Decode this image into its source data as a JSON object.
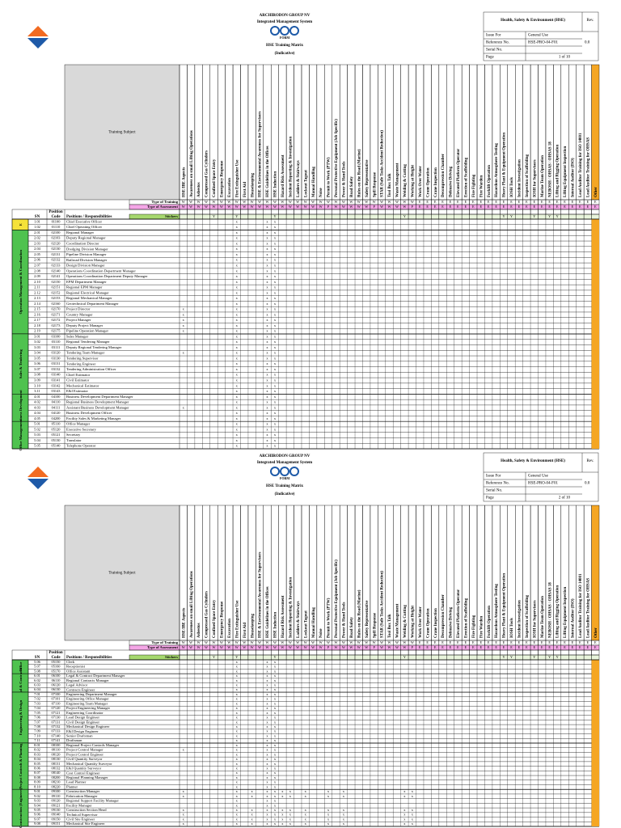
{
  "header": {
    "company": "ARCHIRODON GROUP NV",
    "system": "Integrated Management System",
    "form": "FORM",
    "title": "HSE Training Matrix",
    "subtitle": "(Indicative)",
    "department": "Health, Safety & Environment (HSE)",
    "rev_label": "Rev.",
    "issue_label": "Issue For",
    "issue_value": "General Use",
    "ref_label": "Reference No.",
    "ref_value": "HSE-PRO-04-F01",
    "rev_value": "0.0",
    "serial_label": "Serial No.",
    "page_label": "Page"
  },
  "matrix": {
    "subject_label": "Training Subject",
    "type_training_label": "Type of Training",
    "type_assessment_label": "Type of Assessment",
    "stickers_label": "Stickers",
    "sn_label": "SN",
    "position_label": "Position",
    "code_label": "Code",
    "positions_label": "Positions / Responsibilities",
    "columns": [
      "HSE/IBE Aspects",
      "Awareness on small Lifting Operations",
      "Asbestos",
      "Compressed Gas Cylinders",
      "Confined Space Entry",
      "Emergency Response",
      "Excavation",
      "Fire Extinguisher Use",
      "First Aid",
      "Housekeeping",
      "HSE & Environmental Awareness for Supervisors",
      "HSE Guidelines in the Offices",
      "HSE Induction",
      "Hazard Risk Assessment",
      "Incident Reporting & Investigation",
      "Ladders & Stairways",
      "Lockout Tagout",
      "Manual Handling",
      "Noise",
      "Permit to Work (PTW)",
      "Personal Protective Equipment (Job Specific)",
      "Power & Hand Tools",
      "Road Safety",
      "Rules on the Road (Marine)",
      "Safety Representative",
      "Spill Response",
      "STAR (Safe Tasks Accident Reduction)",
      "Tool Box Talk",
      "Waste Management",
      "Welding & Cutting",
      "Working at Height",
      "Work Over Water",
      "Crane Operation",
      "Crane Inspection",
      "Decompression Chamber",
      "Defensive Driving",
      "Elevated Platform Operator",
      "Erection of Scaffolding",
      "Fire Fighting",
      "Fire Warden",
      "Forklift Operation",
      "Hazardous Atmosphere Testing",
      "Heavy Plant & Equipment Operation",
      "IOSH Tools",
      "Incident Investigation",
      "Inspection of Scaffolding",
      "IOSH for Supervisors",
      "Marine Team Operation",
      "NEBOSH / OHSAS / OHSAS 18",
      "Lifting and Rigging Operation",
      "Lifting Equipment Inspection",
      "Internal Auditor (ISO)",
      "Lead Auditor Training for ISO 14001",
      "Lead Auditor Training for OHSAS",
      "Other"
    ],
    "type_training": "WWWWWWWWWWWWWWWWWWWWWWWWWWWWWWWEEEEEEEEEEEEEEEEEEEEEEEE",
    "type_assessment": "WWWWWWWWWWWWWWWWWWWPWWWWWPWWWWPEEEEEEEEEEEEEEEEEEEEEEEE",
    "stickers": "    Y  Y    Y                Y            YY  Y YY"
  },
  "pages": [
    {
      "page": "1 of 10",
      "groups": [
        {
          "label": "E",
          "rows": [
            {
              "sn": "1.01",
              "code": "01100",
              "position": "Chief Executive Officer",
              "cells": "       x   xx"
            },
            {
              "sn": "1.02",
              "code": "01110",
              "position": "Chief Operating Officer",
              "cells": "       x   xx"
            }
          ]
        },
        {
          "label": "Operation Management & Coordination",
          "rows": [
            {
              "sn": "2.01",
              "code": "02100",
              "position": "Regional Manager",
              "cells": "       x   xx"
            },
            {
              "sn": "2.02",
              "code": "02103",
              "position": "Deputy Regional Manager",
              "cells": "       x   xx"
            },
            {
              "sn": "2.03",
              "code": "02120",
              "position": "Coordination Director",
              "cells": "       x   xx"
            },
            {
              "sn": "2.04",
              "code": "02130",
              "position": "Dredging Division Manager",
              "cells": "       x   xx"
            },
            {
              "sn": "2.05",
              "code": "02131",
              "position": "Pipeline Division Manager",
              "cells": "       x   xx"
            },
            {
              "sn": "2.06",
              "code": "02132",
              "position": "Railroad Division Manager",
              "cells": "       x   xx"
            },
            {
              "sn": "2.07",
              "code": "02133",
              "position": "Design Division Manager",
              "cells": "       x   xx"
            },
            {
              "sn": "2.08",
              "code": "02140",
              "position": "Operations Coordination Department Manager",
              "cells": "       x   xx"
            },
            {
              "sn": "2.09",
              "code": "02141",
              "position": "Operations Coordination Department Deputy Manager",
              "cells": "       x   xx"
            },
            {
              "sn": "2.10",
              "code": "02150",
              "position": "EPM Department Manager",
              "cells": "       x   xx"
            },
            {
              "sn": "2.11",
              "code": "02151",
              "position": "Regional EPM Manager",
              "cells": "       x   xx"
            },
            {
              "sn": "2.12",
              "code": "02152",
              "position": "Regional Electrical Manager",
              "cells": "       x   xx"
            },
            {
              "sn": "2.13",
              "code": "02153",
              "position": "Regional Mechanical Manager",
              "cells": "       x   xx"
            },
            {
              "sn": "2.14",
              "code": "02160",
              "position": "Geotechnical Department Manager",
              "cells": "       x   xx"
            },
            {
              "sn": "2.15",
              "code": "02170",
              "position": "Project Director",
              "cells": "x      x   xx"
            },
            {
              "sn": "2.16",
              "code": "02171",
              "position": "Country Manager",
              "cells": "x      x   xx"
            },
            {
              "sn": "2.17",
              "code": "02172",
              "position": "Project Manager",
              "cells": "x      x   xx"
            },
            {
              "sn": "2.18",
              "code": "02173",
              "position": "Deputy Project Manager",
              "cells": "x      x   xx"
            },
            {
              "sn": "2.19",
              "code": "02175",
              "position": "Pipeline Operation Manager",
              "cells": "x      x   xx"
            }
          ]
        },
        {
          "label": "Sales & Tendering",
          "rows": [
            {
              "sn": "3.01",
              "code": "03100",
              "position": "Sales Manager",
              "cells": "       x   xx"
            },
            {
              "sn": "3.02",
              "code": "03110",
              "position": "Regional Tendering Manager",
              "cells": "       x   xx"
            },
            {
              "sn": "3.03",
              "code": "03111",
              "position": "Deputy Regional Tendering Manager",
              "cells": "       x   xx"
            },
            {
              "sn": "3.04",
              "code": "03120",
              "position": "Tendering Team Manager",
              "cells": "x      x   xx"
            },
            {
              "sn": "3.05",
              "code": "03130",
              "position": "Tendering Supervisor",
              "cells": "       x   xx"
            },
            {
              "sn": "3.06",
              "code": "03131",
              "position": "Tendering Engineer",
              "cells": "       x   xx"
            },
            {
              "sn": "3.07",
              "code": "03132",
              "position": "Tendering Administration Officer",
              "cells": "       x   xx"
            },
            {
              "sn": "3.08",
              "code": "03140",
              "position": "Chief Estimator",
              "cells": "       x   xx"
            },
            {
              "sn": "3.09",
              "code": "03141",
              "position": "Civil Estimator",
              "cells": "       x   xx"
            },
            {
              "sn": "3.10",
              "code": "03142",
              "position": "Mechanical Estimator",
              "cells": "       x   xx"
            },
            {
              "sn": "3.11",
              "code": "03143",
              "position": "E&I Estimator",
              "cells": "       x   xx"
            }
          ]
        },
        {
          "label": "Business Development",
          "rows": [
            {
              "sn": "4.01",
              "code": "04100",
              "position": "Business Development Department Manager",
              "cells": "       x   xx"
            },
            {
              "sn": "4.02",
              "code": "04110",
              "position": "Regional Business Development Manager",
              "cells": "       x   xx"
            },
            {
              "sn": "4.03",
              "code": "04111",
              "position": "Assistant Business Development Manager",
              "cells": "x      x   xx"
            },
            {
              "sn": "4.04",
              "code": "04120",
              "position": "Business Development Officer",
              "cells": "       x   xx"
            },
            {
              "sn": "4.05",
              "code": "04200",
              "position": "Facility Sales & Marketing Manager",
              "cells": "       x   xx"
            }
          ]
        },
        {
          "label": "Office Management",
          "rows": [
            {
              "sn": "5.01",
              "code": "05110",
              "position": "Office Manager",
              "cells": "       x   xx"
            },
            {
              "sn": "5.02",
              "code": "05120",
              "position": "Executive Secretary",
              "cells": "       x   xx"
            },
            {
              "sn": "5.03",
              "code": "05121",
              "position": "Secretary",
              "cells": "       x   xx"
            },
            {
              "sn": "5.04",
              "code": "05130",
              "position": "Translator",
              "cells": "       x   xx"
            },
            {
              "sn": "5.05",
              "code": "05140",
              "position": "Telephone Operator",
              "cells": "       x   xx"
            }
          ]
        }
      ]
    },
    {
      "page": "2 of 10",
      "groups": [
        {
          "label": "Office",
          "rows": [
            {
              "sn": "5.06",
              "code": "05150",
              "position": "Clerk",
              "cells": "       x   xx"
            },
            {
              "sn": "5.07",
              "code": "05160",
              "position": "Receptionist",
              "cells": "       x   xx"
            },
            {
              "sn": "5.08",
              "code": "05170",
              "position": "Office Assistant",
              "cells": "       x   xx"
            }
          ]
        },
        {
          "label": "Legal & Contracts",
          "rows": [
            {
              "sn": "6.01",
              "code": "06100",
              "position": "Legal & Contract Department Manager",
              "cells": "       x   xx"
            },
            {
              "sn": "6.02",
              "code": "06110",
              "position": "Regional Contracts Manager",
              "cells": "       x   xx"
            },
            {
              "sn": "6.03",
              "code": "06120",
              "position": "Legal Advisor",
              "cells": "       x   xx"
            },
            {
              "sn": "6.04",
              "code": "06130",
              "position": "Contracts Engineer",
              "cells": "       x   xx"
            }
          ]
        },
        {
          "label": "Engineering & Design",
          "rows": [
            {
              "sn": "7.01",
              "code": "07100",
              "position": "Engineering Department Manager",
              "cells": "       x   xx"
            },
            {
              "sn": "7.02",
              "code": "07101",
              "position": "Engineering Office Manager",
              "cells": "       x   xx"
            },
            {
              "sn": "7.03",
              "code": "07110",
              "position": "Engineering Team Manager",
              "cells": "       x   xx"
            },
            {
              "sn": "7.04",
              "code": "07120",
              "position": "Project Engineering Manager",
              "cells": "       x   xx"
            },
            {
              "sn": "7.05",
              "code": "07121",
              "position": "Engineering Coordinator",
              "cells": "       x   xx"
            },
            {
              "sn": "7.06",
              "code": "07130",
              "position": "Lead Design Engineer",
              "cells": "       x   xx"
            },
            {
              "sn": "7.07",
              "code": "07131",
              "position": "Civil Design Engineer",
              "cells": "       x   xx"
            },
            {
              "sn": "7.08",
              "code": "07132",
              "position": "Mechanical Design Engineer",
              "cells": "       x   xx"
            },
            {
              "sn": "7.09",
              "code": "07133",
              "position": "E&I Design Engineer",
              "cells": "       x   xx"
            },
            {
              "sn": "7.10",
              "code": "07140",
              "position": "Senior Draftsman",
              "cells": "       x   xx"
            },
            {
              "sn": "7.11",
              "code": "07141",
              "position": "Draftsman",
              "cells": "       x   xx"
            }
          ]
        },
        {
          "label": "Project Controls & Planning",
          "rows": [
            {
              "sn": "8.01",
              "code": "08100",
              "position": "Regional Project Controls Manager",
              "cells": "       x   xx"
            },
            {
              "sn": "8.02",
              "code": "08110",
              "position": "Project Control Manager",
              "cells": "x      x   xx"
            },
            {
              "sn": "8.03",
              "code": "08120",
              "position": "Project Control Engineer",
              "cells": "       x   xx"
            },
            {
              "sn": "8.04",
              "code": "08130",
              "position": "Civil Quantity Surveyor",
              "cells": "       x   xx"
            },
            {
              "sn": "8.05",
              "code": "08131",
              "position": "Mechanical Quantity Surveyor",
              "cells": "       x   xx"
            },
            {
              "sn": "8.06",
              "code": "08132",
              "position": "E&I Quantity Surveyor",
              "cells": "       x   xx"
            },
            {
              "sn": "8.07",
              "code": "08140",
              "position": "Cost Control Engineer",
              "cells": "       x   xx"
            },
            {
              "sn": "8.08",
              "code": "08200",
              "position": "Regional Planning Manager",
              "cells": "       x   xx"
            },
            {
              "sn": "8.09",
              "code": "08210",
              "position": "Lead Planner",
              "cells": "       x   xx"
            },
            {
              "sn": "8.10",
              "code": "08220",
              "position": "Planner",
              "cells": "       x   xx"
            }
          ]
        },
        {
          "label": "Construction (Engineers)",
          "rows": [
            {
              "sn": "9.01",
              "code": "09100",
              "position": "Construction Manager",
              "cells": "x      x x xxxx x  x x       xx"
            },
            {
              "sn": "9.02",
              "code": "09110",
              "position": "Fabrication Manager",
              "cells": "x      x x xxxx x  x x       xx"
            },
            {
              "sn": "9.03",
              "code": "09120",
              "position": "Regional Support Facility Manager",
              "cells": "       x   xx"
            },
            {
              "sn": "9.04",
              "code": "09121",
              "position": "Facility Manager",
              "cells": "       x   xx"
            },
            {
              "sn": "9.05",
              "code": "09130",
              "position": "Construction Section Head",
              "cells": "x      x x xxxx x  x x       xx"
            },
            {
              "sn": "9.06",
              "code": "09140",
              "position": "Technical Supervisor",
              "cells": "x      x x xxxx x  x x       xx"
            },
            {
              "sn": "9.07",
              "code": "09150",
              "position": "Civil Site Engineer",
              "cells": "x      x x xxxx x  x x       xx"
            },
            {
              "sn": "9.08",
              "code": "09151",
              "position": "Mechanical Site Engineer",
              "cells": "x      x x xxxx x  x x       xx"
            }
          ]
        }
      ]
    }
  ]
}
